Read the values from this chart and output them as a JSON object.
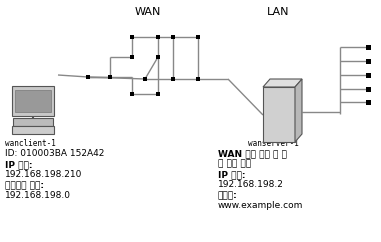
{
  "wan_label": "WAN",
  "lan_label": "LAN",
  "client_name": "wanclient-1",
  "client_id": "ID: 010003BA 152A42",
  "client_ip_label": "IP 주소:",
  "client_ip": "192.168.198.210",
  "client_net_label": "네트워크 주소:",
  "client_net": "192.168.198.0",
  "server_name": "wanserver-1",
  "server_desc1": "WAN 부트 서버 및 설",
  "server_desc2": "치 서버 조합",
  "server_ip_label": "IP 주소:",
  "server_ip": "192.168.198.2",
  "domain_label": "도메인:",
  "domain": "www.example.com",
  "bg_color": "#ffffff",
  "text_color": "#000000",
  "line_color": "#888888",
  "node_color": "#000000",
  "fig_w": 3.81,
  "fig_h": 2.42,
  "dpi": 100
}
